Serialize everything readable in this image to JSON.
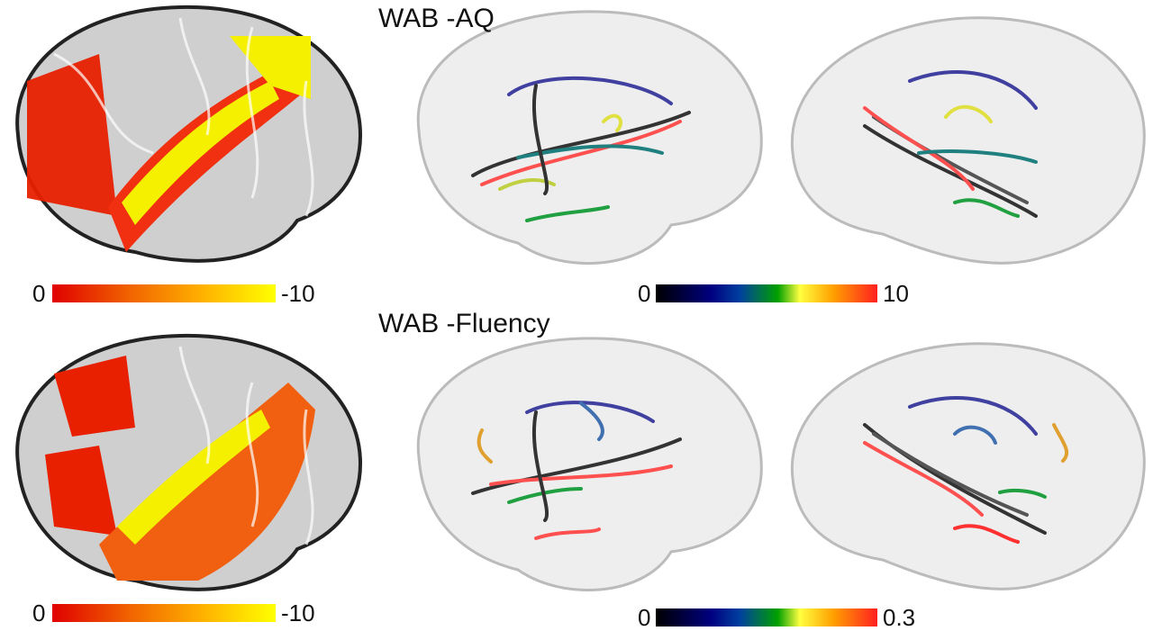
{
  "panels": [
    {
      "title": "WAB -AQ",
      "surface_colorbar": {
        "min_label": "0",
        "max_label": "-10",
        "colormap": "hot",
        "colors": [
          "#e00000",
          "#ffff00"
        ]
      },
      "tract_colorbar": {
        "min_label": "0",
        "max_label": "10",
        "colormap": "jet",
        "colors": [
          "#000000",
          "#000080",
          "#00a000",
          "#ffff40",
          "#ff2020"
        ]
      }
    },
    {
      "title": "WAB -Fluency",
      "surface_colorbar": {
        "min_label": "0",
        "max_label": "-10",
        "colormap": "hot",
        "colors": [
          "#e00000",
          "#ffff00"
        ]
      },
      "tract_colorbar": {
        "min_label": "0",
        "max_label": "0.3",
        "colormap": "jet",
        "colors": [
          "#000000",
          "#000080",
          "#00a000",
          "#ffff40",
          "#ff2020"
        ]
      }
    }
  ]
}
